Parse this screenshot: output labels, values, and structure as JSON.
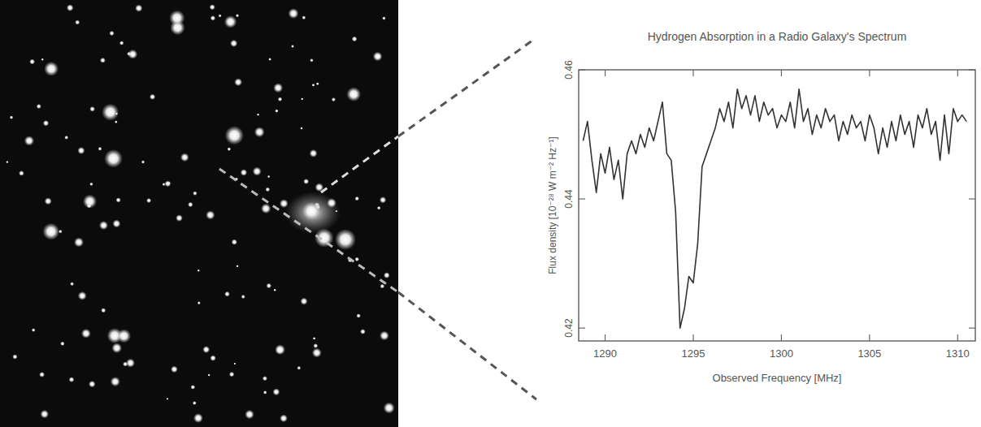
{
  "chart_data": {
    "type": "line",
    "title": "Hydrogen Absorption in a Radio Galaxy's Spectrum",
    "x_label": "Observed Frequency [MHz]",
    "y_label": "Flux density [10⁻²⁸ W m⁻² Hz⁻¹]",
    "x": [
      1288.75,
      1289.0,
      1289.25,
      1289.5,
      1289.75,
      1290.0,
      1290.25,
      1290.5,
      1290.75,
      1291.0,
      1291.25,
      1291.5,
      1291.75,
      1292.0,
      1292.25,
      1292.5,
      1292.75,
      1293.0,
      1293.25,
      1293.5,
      1293.75,
      1294.0,
      1294.25,
      1294.5,
      1294.75,
      1295.0,
      1295.25,
      1295.5,
      1295.75,
      1296.0,
      1296.25,
      1296.5,
      1296.75,
      1297.0,
      1297.25,
      1297.5,
      1297.75,
      1298.0,
      1298.25,
      1298.5,
      1298.75,
      1299.0,
      1299.25,
      1299.5,
      1299.75,
      1300.0,
      1300.25,
      1300.5,
      1300.75,
      1301.0,
      1301.25,
      1301.5,
      1301.75,
      1302.0,
      1302.25,
      1302.5,
      1302.75,
      1303.0,
      1303.25,
      1303.5,
      1303.75,
      1304.0,
      1304.25,
      1304.5,
      1304.75,
      1305.0,
      1305.25,
      1305.5,
      1305.75,
      1306.0,
      1306.25,
      1306.5,
      1306.75,
      1307.0,
      1307.25,
      1307.5,
      1307.75,
      1308.0,
      1308.25,
      1308.5,
      1308.75,
      1309.0,
      1309.25,
      1309.5,
      1309.75,
      1310.0,
      1310.25,
      1310.5
    ],
    "values": [
      0.449,
      0.452,
      0.446,
      0.441,
      0.447,
      0.444,
      0.448,
      0.443,
      0.446,
      0.44,
      0.447,
      0.449,
      0.447,
      0.45,
      0.448,
      0.451,
      0.449,
      0.452,
      0.455,
      0.447,
      0.446,
      0.438,
      0.42,
      0.423,
      0.428,
      0.427,
      0.433,
      0.445,
      0.447,
      0.449,
      0.451,
      0.454,
      0.452,
      0.455,
      0.451,
      0.457,
      0.454,
      0.456,
      0.453,
      0.456,
      0.452,
      0.455,
      0.453,
      0.454,
      0.451,
      0.453,
      0.452,
      0.455,
      0.451,
      0.457,
      0.452,
      0.454,
      0.45,
      0.453,
      0.451,
      0.454,
      0.452,
      0.453,
      0.449,
      0.452,
      0.45,
      0.453,
      0.451,
      0.452,
      0.449,
      0.453,
      0.451,
      0.447,
      0.451,
      0.448,
      0.452,
      0.449,
      0.453,
      0.45,
      0.452,
      0.448,
      0.453,
      0.451,
      0.454,
      0.45,
      0.452,
      0.446,
      0.453,
      0.447,
      0.454,
      0.452,
      0.453,
      0.452
    ],
    "color": "#333333",
    "xlim": [
      1288.5,
      1311
    ],
    "ylim": [
      0.418,
      0.46
    ],
    "xticks": [
      1290,
      1295,
      1300,
      1305,
      1310
    ],
    "yticks": [
      0.42,
      0.44,
      0.46
    ]
  }
}
